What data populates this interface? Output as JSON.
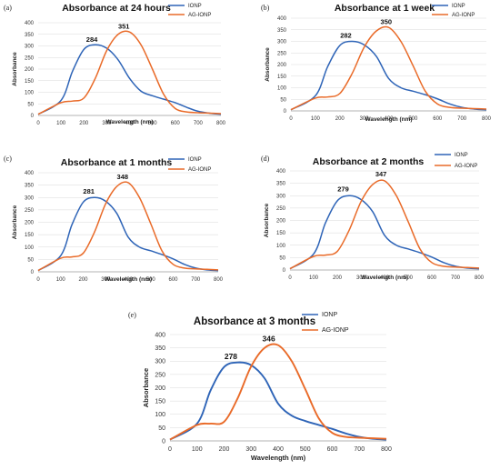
{
  "colors": {
    "ionp": "#2e64b7",
    "ag_ionp": "#e96a28",
    "grid": "#d9d9d9",
    "axis": "#9a9a9a"
  },
  "chart_data": [
    {
      "type": "line",
      "panel_label": "(a)",
      "title": "Absorbance at 24 hours",
      "xlabel": "Wavelength (nm)",
      "ylabel": "Absorbance",
      "xlim": [
        0,
        800
      ],
      "ylim": [
        0,
        400
      ],
      "xticks": [
        0,
        100,
        200,
        300,
        400,
        500,
        600,
        700,
        800
      ],
      "yticks": [
        0,
        50,
        100,
        150,
        200,
        250,
        300,
        350,
        400
      ],
      "grid": "horizontal",
      "legend_position": "top-right",
      "series": [
        {
          "name": "IONP",
          "x": [
            0,
            100,
            150,
            200,
            250,
            300,
            350,
            400,
            450,
            500,
            550,
            600,
            650,
            700,
            750,
            800
          ],
          "values": [
            5,
            65,
            190,
            285,
            305,
            290,
            240,
            160,
            105,
            85,
            70,
            55,
            35,
            18,
            10,
            5
          ]
        },
        {
          "name": "AG-IONP",
          "x": [
            0,
            100,
            150,
            200,
            250,
            300,
            350,
            400,
            450,
            500,
            550,
            600,
            650,
            700,
            750,
            800
          ],
          "values": [
            5,
            55,
            62,
            75,
            160,
            280,
            350,
            360,
            305,
            200,
            90,
            30,
            15,
            12,
            10,
            8
          ]
        }
      ],
      "annotations": [
        {
          "text": "284",
          "x": 235,
          "y": 318
        },
        {
          "text": "351",
          "x": 375,
          "y": 375
        }
      ]
    },
    {
      "type": "line",
      "panel_label": "(b)",
      "title": "Absorbance at 1 week",
      "xlabel": "Wavelength (nm)",
      "ylabel": "Absorbance",
      "xlim": [
        0,
        800
      ],
      "ylim": [
        0,
        400
      ],
      "xticks": [
        0,
        100,
        200,
        300,
        400,
        500,
        600,
        700,
        800
      ],
      "yticks": [
        0,
        50,
        100,
        150,
        200,
        250,
        300,
        350,
        400
      ],
      "grid": "horizontal",
      "legend_position": "top-right",
      "series": [
        {
          "name": "IONP",
          "x": [
            0,
            100,
            150,
            200,
            250,
            300,
            350,
            400,
            450,
            500,
            550,
            600,
            650,
            700,
            750,
            800
          ],
          "values": [
            5,
            65,
            190,
            282,
            300,
            285,
            235,
            140,
            100,
            85,
            70,
            52,
            30,
            15,
            8,
            5
          ]
        },
        {
          "name": "AG-IONP",
          "x": [
            0,
            100,
            150,
            200,
            250,
            300,
            350,
            400,
            450,
            500,
            550,
            600,
            650,
            700,
            750,
            800
          ],
          "values": [
            5,
            55,
            60,
            75,
            160,
            275,
            345,
            360,
            300,
            195,
            85,
            30,
            15,
            12,
            10,
            8
          ]
        }
      ],
      "annotations": [
        {
          "text": "282",
          "x": 225,
          "y": 315
        },
        {
          "text": "350",
          "x": 390,
          "y": 375
        }
      ]
    },
    {
      "type": "line",
      "panel_label": "(c)",
      "title": "Absorbance at 1 months",
      "xlabel": "Wavelength (nm)",
      "ylabel": "Absorbance",
      "xlim": [
        0,
        800
      ],
      "ylim": [
        0,
        400
      ],
      "xticks": [
        0,
        100,
        200,
        300,
        400,
        500,
        600,
        700,
        800
      ],
      "yticks": [
        0,
        50,
        100,
        150,
        200,
        250,
        300,
        350,
        400
      ],
      "grid": "horizontal",
      "legend_position": "top-right",
      "series": [
        {
          "name": "IONP",
          "x": [
            0,
            100,
            150,
            200,
            250,
            300,
            350,
            400,
            450,
            500,
            550,
            600,
            650,
            700,
            750,
            800
          ],
          "values": [
            5,
            65,
            190,
            281,
            300,
            285,
            235,
            140,
            100,
            85,
            70,
            52,
            30,
            15,
            8,
            5
          ]
        },
        {
          "name": "AG-IONP",
          "x": [
            0,
            100,
            150,
            200,
            250,
            300,
            350,
            400,
            450,
            500,
            550,
            600,
            650,
            700,
            750,
            800
          ],
          "values": [
            5,
            55,
            60,
            75,
            160,
            275,
            345,
            360,
            300,
            195,
            85,
            30,
            15,
            12,
            10,
            8
          ]
        }
      ],
      "annotations": [
        {
          "text": "281",
          "x": 225,
          "y": 315
        },
        {
          "text": "348",
          "x": 375,
          "y": 375
        }
      ]
    },
    {
      "type": "line",
      "panel_label": "(d)",
      "title": "Absorbance at 2 months",
      "xlabel": "Wavelength (nm)",
      "ylabel": "Absorbance",
      "xlim": [
        0,
        800
      ],
      "ylim": [
        0,
        400
      ],
      "xticks": [
        0,
        100,
        200,
        300,
        400,
        500,
        600,
        700,
        800
      ],
      "yticks": [
        0,
        50,
        100,
        150,
        200,
        250,
        300,
        350,
        400
      ],
      "grid": "horizontal",
      "legend_position": "top-right",
      "series": [
        {
          "name": "IONP",
          "x": [
            0,
            100,
            150,
            200,
            250,
            300,
            350,
            400,
            450,
            500,
            550,
            600,
            650,
            700,
            750,
            800
          ],
          "values": [
            5,
            65,
            190,
            279,
            300,
            285,
            235,
            140,
            100,
            85,
            70,
            52,
            30,
            15,
            8,
            5
          ]
        },
        {
          "name": "AG-IONP",
          "x": [
            0,
            100,
            150,
            200,
            250,
            300,
            350,
            400,
            450,
            500,
            550,
            600,
            650,
            700,
            750,
            800
          ],
          "values": [
            5,
            55,
            60,
            75,
            160,
            275,
            345,
            360,
            300,
            195,
            85,
            30,
            15,
            12,
            10,
            8
          ]
        }
      ],
      "annotations": [
        {
          "text": "279",
          "x": 225,
          "y": 318
        },
        {
          "text": "347",
          "x": 385,
          "y": 378
        }
      ]
    },
    {
      "type": "line",
      "panel_label": "(e)",
      "title": "Absorbance at 3 months",
      "xlabel": "Wavelength (nm)",
      "ylabel": "Absorbance",
      "xlim": [
        0,
        800
      ],
      "ylim": [
        0,
        400
      ],
      "xticks": [
        0,
        100,
        200,
        300,
        400,
        500,
        600,
        700,
        800
      ],
      "yticks": [
        0,
        50,
        100,
        150,
        200,
        250,
        300,
        350,
        400
      ],
      "grid": "horizontal",
      "legend_position": "top-right",
      "series": [
        {
          "name": "IONP",
          "x": [
            0,
            100,
            150,
            200,
            250,
            300,
            350,
            400,
            450,
            500,
            550,
            600,
            650,
            700,
            750,
            800
          ],
          "values": [
            5,
            65,
            190,
            278,
            295,
            285,
            235,
            140,
            95,
            75,
            60,
            45,
            28,
            15,
            8,
            5
          ]
        },
        {
          "name": "AG-IONP",
          "x": [
            0,
            100,
            150,
            200,
            250,
            300,
            350,
            400,
            450,
            500,
            550,
            600,
            650,
            700,
            750,
            800
          ],
          "values": [
            5,
            60,
            65,
            72,
            160,
            280,
            350,
            360,
            300,
            195,
            85,
            30,
            15,
            12,
            10,
            8
          ]
        }
      ],
      "annotations": [
        {
          "text": "278",
          "x": 225,
          "y": 308
        },
        {
          "text": "346",
          "x": 365,
          "y": 375
        }
      ]
    }
  ]
}
